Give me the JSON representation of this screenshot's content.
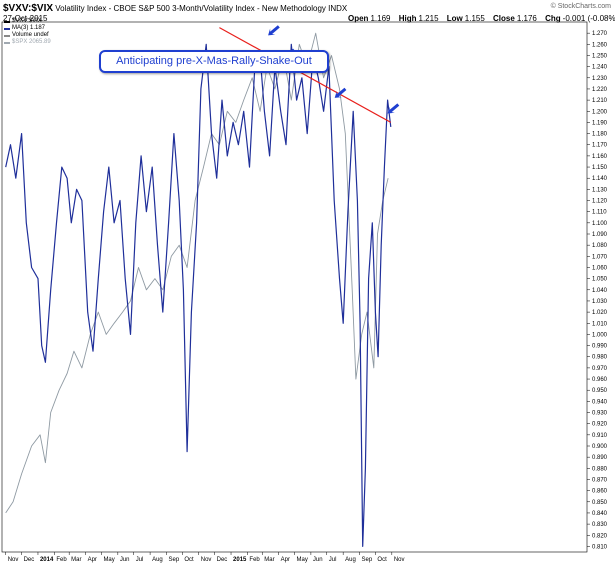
{
  "header": {
    "symbol": "$VXV:$VIX",
    "title": "Volatility Index - CBOE S&P 500 3-Month/Volatility Index - New Methodology",
    "exchange": "INDX",
    "date": "27-Oct-2015",
    "open_label": "Open",
    "open": "1.169",
    "high_label": "High",
    "high": "1.215",
    "low_label": "Low",
    "low": "1.155",
    "close_label": "Close",
    "close": "1.176",
    "chg_label": "Chg",
    "chg": "-0.001 (-0.08%)",
    "watermark": "© StockCharts.com"
  },
  "legend": [
    {
      "text": "$VXV:$VIX",
      "color": "#000000"
    },
    {
      "text": "MA(3) 1.187",
      "color": "#1f2f9a"
    },
    {
      "text": "Volume undef",
      "color": "#888888"
    },
    {
      "text": "$SPX 2065.89",
      "color": "#a0a8b0"
    }
  ],
  "annotation": "Anticipating pre-X-Mas-Rally-Shake-Out",
  "colors": {
    "ma_line": "#1f2f9a",
    "spx_line": "#8f9aa3",
    "trendline": "#e8201c",
    "arrow": "#1f3fd0"
  },
  "chart_data": {
    "type": "line",
    "ylim": [
      0.805,
      1.28
    ],
    "yticks": [
      0.81,
      0.82,
      0.83,
      0.84,
      0.85,
      0.86,
      0.87,
      0.88,
      0.89,
      0.9,
      0.91,
      0.92,
      0.93,
      0.94,
      0.95,
      0.96,
      0.97,
      0.98,
      0.99,
      1.0,
      1.01,
      1.02,
      1.03,
      1.04,
      1.05,
      1.06,
      1.07,
      1.08,
      1.09,
      1.1,
      1.11,
      1.12,
      1.13,
      1.14,
      1.15,
      1.16,
      1.17,
      1.18,
      1.19,
      1.2,
      1.21,
      1.22,
      1.23,
      1.24,
      1.25,
      1.26,
      1.27
    ],
    "xlim": [
      "2012-10-25",
      "2015-11-05"
    ],
    "xticks": [
      {
        "label": "Nov",
        "date": "2012-11-01"
      },
      {
        "label": "Dec",
        "date": "2012-12-01"
      },
      {
        "label": "2014",
        "date": "2013-01-01",
        "bold": true
      },
      {
        "label": "Feb",
        "date": "2013-02-01"
      },
      {
        "label": "Mar",
        "date": "2013-03-01"
      },
      {
        "label": "Apr",
        "date": "2013-04-01"
      },
      {
        "label": "May",
        "date": "2013-05-01"
      },
      {
        "label": "Jun",
        "date": "2013-06-01"
      },
      {
        "label": "Jul",
        "date": "2013-07-01"
      },
      {
        "label": "Aug",
        "date": "2013-08-01"
      },
      {
        "label": "Sep",
        "date": "2013-09-01"
      },
      {
        "label": "Oct",
        "date": "2013-10-01"
      },
      {
        "label": "Nov",
        "date": "2013-11-01"
      },
      {
        "label": "Dec",
        "date": "2013-12-01"
      },
      {
        "label": "2015",
        "date": "2014-01-01",
        "bold": true
      },
      {
        "label": "Feb",
        "date": "2014-02-01"
      },
      {
        "label": "Mar",
        "date": "2014-03-01"
      },
      {
        "label": "Apr",
        "date": "2014-04-01"
      },
      {
        "label": "May",
        "date": "2014-05-01"
      },
      {
        "label": "Jun",
        "date": "2014-06-01"
      },
      {
        "label": "Jul",
        "date": "2014-07-01"
      },
      {
        "label": "Aug",
        "date": "2014-08-01"
      },
      {
        "label": "Sep",
        "date": "2014-09-01"
      },
      {
        "label": "Oct",
        "date": "2014-10-01"
      },
      {
        "label": "Nov",
        "date": "2014-11-01"
      }
    ],
    "series": [
      {
        "name": "MA(3)",
        "points": [
          [
            "2012-11-01",
            1.15
          ],
          [
            "2012-11-10",
            1.17
          ],
          [
            "2012-11-20",
            1.14
          ],
          [
            "2012-12-01",
            1.18
          ],
          [
            "2012-12-10",
            1.1
          ],
          [
            "2012-12-20",
            1.06
          ],
          [
            "2013-01-01",
            1.05
          ],
          [
            "2013-01-08",
            0.99
          ],
          [
            "2013-01-15",
            0.975
          ],
          [
            "2013-01-25",
            1.04
          ],
          [
            "2013-02-05",
            1.1
          ],
          [
            "2013-02-15",
            1.15
          ],
          [
            "2013-02-25",
            1.14
          ],
          [
            "2013-03-05",
            1.1
          ],
          [
            "2013-03-15",
            1.13
          ],
          [
            "2013-03-25",
            1.12
          ],
          [
            "2013-04-05",
            1.02
          ],
          [
            "2013-04-15",
            0.985
          ],
          [
            "2013-04-25",
            1.05
          ],
          [
            "2013-05-05",
            1.11
          ],
          [
            "2013-05-15",
            1.15
          ],
          [
            "2013-05-25",
            1.1
          ],
          [
            "2013-06-05",
            1.12
          ],
          [
            "2013-06-15",
            1.05
          ],
          [
            "2013-06-25",
            1.0
          ],
          [
            "2013-07-05",
            1.1
          ],
          [
            "2013-07-15",
            1.16
          ],
          [
            "2013-07-25",
            1.11
          ],
          [
            "2013-08-05",
            1.15
          ],
          [
            "2013-08-15",
            1.08
          ],
          [
            "2013-08-25",
            1.02
          ],
          [
            "2013-09-05",
            1.1
          ],
          [
            "2013-09-15",
            1.18
          ],
          [
            "2013-09-25",
            1.12
          ],
          [
            "2013-10-03",
            1.04
          ],
          [
            "2013-10-10",
            0.895
          ],
          [
            "2013-10-18",
            1.02
          ],
          [
            "2013-10-28",
            1.1
          ],
          [
            "2013-11-05",
            1.22
          ],
          [
            "2013-11-15",
            1.26
          ],
          [
            "2013-11-25",
            1.18
          ],
          [
            "2013-12-05",
            1.14
          ],
          [
            "2013-12-15",
            1.21
          ],
          [
            "2013-12-25",
            1.16
          ],
          [
            "2014-01-05",
            1.19
          ],
          [
            "2014-01-15",
            1.17
          ],
          [
            "2014-01-25",
            1.2
          ],
          [
            "2014-02-05",
            1.15
          ],
          [
            "2014-02-15",
            1.24
          ],
          [
            "2014-02-25",
            1.25
          ],
          [
            "2014-03-05",
            1.2
          ],
          [
            "2014-03-15",
            1.16
          ],
          [
            "2014-03-25",
            1.24
          ],
          [
            "2014-04-05",
            1.2
          ],
          [
            "2014-04-15",
            1.17
          ],
          [
            "2014-04-25",
            1.26
          ],
          [
            "2014-05-05",
            1.21
          ],
          [
            "2014-05-15",
            1.23
          ],
          [
            "2014-05-25",
            1.18
          ],
          [
            "2014-06-05",
            1.25
          ],
          [
            "2014-06-15",
            1.23
          ],
          [
            "2014-06-25",
            1.2
          ],
          [
            "2014-07-05",
            1.24
          ],
          [
            "2014-07-15",
            1.12
          ],
          [
            "2014-07-25",
            1.05
          ],
          [
            "2014-08-01",
            1.01
          ],
          [
            "2014-08-10",
            1.11
          ],
          [
            "2014-08-20",
            1.2
          ],
          [
            "2014-08-28",
            1.12
          ],
          [
            "2014-09-02",
            1.01
          ],
          [
            "2014-09-07",
            0.81
          ],
          [
            "2014-09-12",
            0.88
          ],
          [
            "2014-09-18",
            1.05
          ],
          [
            "2014-09-25",
            1.1
          ],
          [
            "2014-10-01",
            1.02
          ],
          [
            "2014-10-06",
            0.98
          ],
          [
            "2014-10-12",
            1.08
          ],
          [
            "2014-10-18",
            1.15
          ],
          [
            "2014-10-24",
            1.21
          ],
          [
            "2014-10-30",
            1.186
          ]
        ]
      },
      {
        "name": "$SPX",
        "points": [
          [
            "2012-11-01",
            0.84
          ],
          [
            "2012-11-15",
            0.85
          ],
          [
            "2012-12-01",
            0.875
          ],
          [
            "2012-12-20",
            0.9
          ],
          [
            "2013-01-05",
            0.91
          ],
          [
            "2013-01-15",
            0.885
          ],
          [
            "2013-01-25",
            0.93
          ],
          [
            "2013-02-10",
            0.95
          ],
          [
            "2013-02-25",
            0.965
          ],
          [
            "2013-03-10",
            0.985
          ],
          [
            "2013-03-25",
            0.97
          ],
          [
            "2013-04-10",
            1.0
          ],
          [
            "2013-04-25",
            1.02
          ],
          [
            "2013-05-10",
            1.0
          ],
          [
            "2013-05-25",
            1.01
          ],
          [
            "2013-06-10",
            1.02
          ],
          [
            "2013-06-25",
            1.03
          ],
          [
            "2013-07-10",
            1.06
          ],
          [
            "2013-07-25",
            1.04
          ],
          [
            "2013-08-10",
            1.05
          ],
          [
            "2013-08-25",
            1.04
          ],
          [
            "2013-09-10",
            1.07
          ],
          [
            "2013-09-25",
            1.08
          ],
          [
            "2013-10-10",
            1.06
          ],
          [
            "2013-10-25",
            1.12
          ],
          [
            "2013-11-10",
            1.15
          ],
          [
            "2013-11-25",
            1.18
          ],
          [
            "2013-12-10",
            1.17
          ],
          [
            "2013-12-25",
            1.2
          ],
          [
            "2014-01-10",
            1.19
          ],
          [
            "2014-01-25",
            1.21
          ],
          [
            "2014-02-10",
            1.23
          ],
          [
            "2014-02-25",
            1.2
          ],
          [
            "2014-03-10",
            1.24
          ],
          [
            "2014-03-25",
            1.22
          ],
          [
            "2014-04-10",
            1.25
          ],
          [
            "2014-04-25",
            1.21
          ],
          [
            "2014-05-10",
            1.26
          ],
          [
            "2014-05-25",
            1.24
          ],
          [
            "2014-06-10",
            1.27
          ],
          [
            "2014-06-25",
            1.23
          ],
          [
            "2014-07-10",
            1.25
          ],
          [
            "2014-07-25",
            1.22
          ],
          [
            "2014-08-05",
            1.18
          ],
          [
            "2014-08-18",
            1.04
          ],
          [
            "2014-08-25",
            0.96
          ],
          [
            "2014-09-05",
            1.0
          ],
          [
            "2014-09-15",
            1.02
          ],
          [
            "2014-09-28",
            0.97
          ],
          [
            "2014-10-05",
            1.09
          ],
          [
            "2014-10-15",
            1.12
          ],
          [
            "2014-10-25",
            1.14
          ]
        ]
      },
      {
        "name": "Trendline",
        "points": [
          [
            "2013-12-10",
            1.275
          ],
          [
            "2014-10-30",
            1.19
          ]
        ]
      }
    ],
    "arrows": [
      {
        "date": "2014-03-12",
        "value": 1.268
      },
      {
        "date": "2014-04-10",
        "value": 1.247
      },
      {
        "date": "2014-05-06",
        "value": 1.236
      },
      {
        "date": "2014-06-04",
        "value": 1.243
      },
      {
        "date": "2014-07-16",
        "value": 1.212
      },
      {
        "date": "2014-10-24",
        "value": 1.198
      }
    ]
  }
}
